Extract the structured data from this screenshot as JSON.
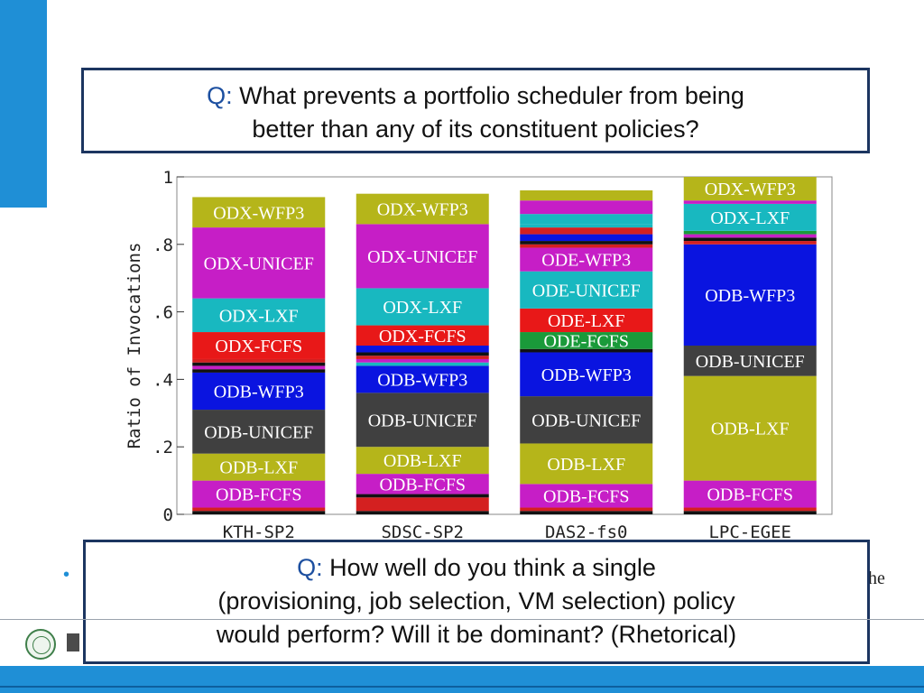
{
  "question_top": {
    "prefix": "Q:",
    "line1": "What prevents a portfolio scheduler from being",
    "line2": "better than any of its constituent policies?"
  },
  "question_bottom": {
    "prefix": "Q:",
    "line1": "How well do you think a single",
    "line2": "(provisioning, job selection, VM selection) policy",
    "line3": "would perform? Will it be dominant? (Rhetorical)"
  },
  "bullet_symbol": "•",
  "side_text": "he",
  "colors": {
    "accent": "#1f8fd6",
    "box_border": "#1c3560",
    "q_label": "#1c4fa0"
  },
  "chart_data": {
    "type": "bar",
    "stacked": true,
    "ylabel": "Ratio of Invocations",
    "ylim": [
      0,
      1
    ],
    "yticks": [
      0,
      0.2,
      0.4,
      0.6,
      0.8,
      1
    ],
    "ytick_labels": [
      "0",
      ".2",
      ".4",
      ".6",
      ".8",
      "1"
    ],
    "categories": [
      "KTH-SP2",
      "SDSC-SP2",
      "DAS2-fs0",
      "LPC-EGEE"
    ],
    "bars": [
      {
        "category": "KTH-SP2",
        "segments": [
          {
            "value": 0.01,
            "color": "#111111"
          },
          {
            "value": 0.01,
            "color": "#d42020"
          },
          {
            "label": "ODB-FCFS",
            "value": 0.08,
            "color": "#c61ec6"
          },
          {
            "label": "ODB-LXF",
            "value": 0.08,
            "color": "#b5b51a"
          },
          {
            "label": "ODB-UNICEF",
            "value": 0.13,
            "color": "#404040"
          },
          {
            "label": "ODB-WFP3",
            "value": 0.11,
            "color": "#0a14e0"
          },
          {
            "value": 0.01,
            "color": "#111111"
          },
          {
            "value": 0.01,
            "color": "#c61ec6"
          },
          {
            "value": 0.01,
            "color": "#111111"
          },
          {
            "value": 0.01,
            "color": "#d42020"
          },
          {
            "label": "ODX-FCFS",
            "value": 0.08,
            "color": "#e81818"
          },
          {
            "label": "ODX-LXF",
            "value": 0.1,
            "color": "#18b8c0"
          },
          {
            "label": "ODX-UNICEF",
            "value": 0.21,
            "color": "#c61ec6"
          },
          {
            "label": "ODX-WFP3",
            "value": 0.09,
            "color": "#b5b51a"
          }
        ]
      },
      {
        "category": "SDSC-SP2",
        "segments": [
          {
            "value": 0.01,
            "color": "#111111"
          },
          {
            "value": 0.04,
            "color": "#d42020"
          },
          {
            "value": 0.01,
            "color": "#111111"
          },
          {
            "label": "ODB-FCFS",
            "value": 0.06,
            "color": "#c61ec6"
          },
          {
            "label": "ODB-LXF",
            "value": 0.08,
            "color": "#b5b51a"
          },
          {
            "label": "ODB-UNICEF",
            "value": 0.16,
            "color": "#404040"
          },
          {
            "label": "ODB-WFP3",
            "value": 0.08,
            "color": "#0a14e0"
          },
          {
            "value": 0.01,
            "color": "#18b8c0"
          },
          {
            "value": 0.01,
            "color": "#c61ec6"
          },
          {
            "value": 0.01,
            "color": "#d42020"
          },
          {
            "value": 0.01,
            "color": "#111111"
          },
          {
            "value": 0.02,
            "color": "#0a14e0"
          },
          {
            "label": "ODX-FCFS",
            "value": 0.06,
            "color": "#e81818"
          },
          {
            "label": "ODX-LXF",
            "value": 0.11,
            "color": "#18b8c0"
          },
          {
            "label": "ODX-UNICEF",
            "value": 0.19,
            "color": "#c61ec6"
          },
          {
            "label": "ODX-WFP3",
            "value": 0.09,
            "color": "#b5b51a"
          }
        ]
      },
      {
        "category": "DAS2-fs0",
        "segments": [
          {
            "value": 0.01,
            "color": "#111111"
          },
          {
            "value": 0.01,
            "color": "#d42020"
          },
          {
            "label": "ODB-FCFS",
            "value": 0.07,
            "color": "#c61ec6"
          },
          {
            "label": "ODB-LXF",
            "value": 0.12,
            "color": "#b5b51a"
          },
          {
            "label": "ODB-UNICEF",
            "value": 0.14,
            "color": "#404040"
          },
          {
            "label": "ODB-WFP3",
            "value": 0.13,
            "color": "#0a14e0"
          },
          {
            "value": 0.01,
            "color": "#111111"
          },
          {
            "label": "ODE-FCFS",
            "value": 0.05,
            "color": "#1a9a3a"
          },
          {
            "label": "ODE-LXF",
            "value": 0.07,
            "color": "#e81818"
          },
          {
            "label": "ODE-UNICEF",
            "value": 0.11,
            "color": "#18b8c0"
          },
          {
            "label": "ODE-WFP3",
            "value": 0.07,
            "color": "#c61ec6"
          },
          {
            "value": 0.01,
            "color": "#d42020"
          },
          {
            "value": 0.01,
            "color": "#111111"
          },
          {
            "value": 0.02,
            "color": "#0a14e0"
          },
          {
            "value": 0.02,
            "color": "#d42020"
          },
          {
            "value": 0.01,
            "color": "#18b8c0"
          },
          {
            "value": 0.03,
            "color": "#18b8c0"
          },
          {
            "value": 0.04,
            "color": "#c61ec6"
          },
          {
            "value": 0.03,
            "color": "#b5b51a"
          }
        ]
      },
      {
        "category": "LPC-EGEE",
        "segments": [
          {
            "value": 0.01,
            "color": "#111111"
          },
          {
            "value": 0.01,
            "color": "#d42020"
          },
          {
            "label": "ODB-FCFS",
            "value": 0.08,
            "color": "#c61ec6"
          },
          {
            "label": "ODB-LXF",
            "value": 0.31,
            "color": "#b5b51a"
          },
          {
            "label": "ODB-UNICEF",
            "value": 0.09,
            "color": "#404040"
          },
          {
            "label": "ODB-WFP3",
            "value": 0.3,
            "color": "#0a14e0"
          },
          {
            "value": 0.01,
            "color": "#d42020"
          },
          {
            "value": 0.01,
            "color": "#111111"
          },
          {
            "value": 0.01,
            "color": "#c61ec6"
          },
          {
            "value": 0.01,
            "color": "#1a9a3a"
          },
          {
            "label": "ODX-LXF",
            "value": 0.08,
            "color": "#18b8c0"
          },
          {
            "value": 0.01,
            "color": "#c61ec6"
          },
          {
            "label": "ODX-WFP3",
            "value": 0.07,
            "color": "#b5b51a"
          }
        ]
      }
    ]
  }
}
